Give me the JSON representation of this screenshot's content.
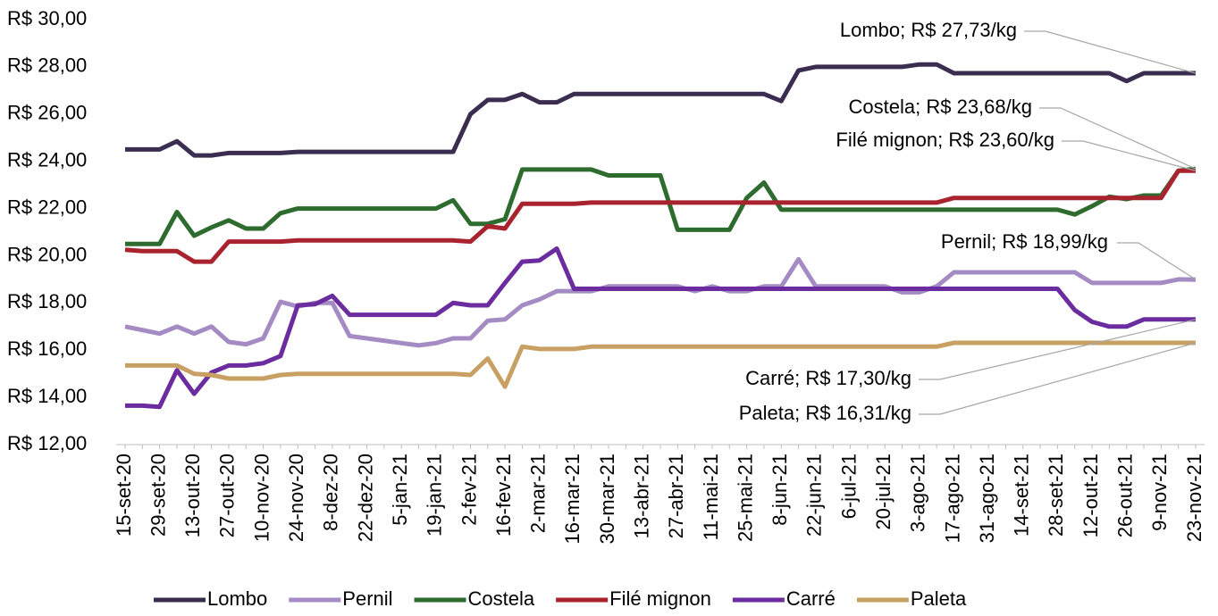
{
  "chart_data": {
    "type": "line",
    "categories": [
      "15-set-20",
      null,
      "29-set-20",
      null,
      "13-out-20",
      null,
      "27-out-20",
      null,
      "10-nov-20",
      null,
      "24-nov-20",
      null,
      "8-dez-20",
      null,
      "22-dez-20",
      null,
      "5-jan-21",
      null,
      "19-jan-21",
      null,
      "2-fev-21",
      null,
      "16-fev-21",
      null,
      "2-mar-21",
      null,
      "16-mar-21",
      null,
      "30-mar-21",
      null,
      "13-abr-21",
      null,
      "27-abr-21",
      null,
      "11-mai-21",
      null,
      "25-mai-21",
      null,
      "8-jun-21",
      null,
      "22-jun-21",
      null,
      "6-jul-21",
      null,
      "20-jul-21",
      null,
      "3-ago-21",
      null,
      "17-ago-21",
      null,
      "31-ago-21",
      null,
      "14-set-21",
      null,
      "28-set-21",
      null,
      "12-out-21",
      null,
      "26-out-21",
      null,
      "9-nov-21",
      null,
      "23-nov-21"
    ],
    "series": [
      {
        "name": "Lombo",
        "color": "#3b2d4f",
        "label": "Lombo; R$ 27,73/kg",
        "values": [
          24.5,
          24.5,
          24.5,
          24.85,
          24.25,
          24.25,
          24.35,
          24.35,
          24.35,
          24.35,
          24.4,
          24.4,
          24.4,
          24.4,
          24.4,
          24.4,
          24.4,
          24.4,
          24.4,
          24.4,
          26.0,
          26.6,
          26.6,
          26.85,
          26.5,
          26.5,
          26.85,
          26.85,
          26.85,
          26.85,
          26.85,
          26.85,
          26.85,
          26.85,
          26.85,
          26.85,
          26.85,
          26.85,
          26.55,
          27.85,
          28.0,
          28.0,
          28.0,
          28.0,
          28.0,
          28.0,
          28.1,
          28.1,
          27.73,
          27.73,
          27.73,
          27.73,
          27.73,
          27.73,
          27.73,
          27.73,
          27.73,
          27.73,
          27.4,
          27.73,
          27.73,
          27.73,
          27.73
        ]
      },
      {
        "name": "Pernil",
        "color": "#a48bc4",
        "label": "Pernil; R$ 18,99/kg",
        "values": [
          17.0,
          16.85,
          16.7,
          17.0,
          16.7,
          17.0,
          16.35,
          16.25,
          16.5,
          18.05,
          17.85,
          18.0,
          18.0,
          16.6,
          16.5,
          16.4,
          16.3,
          16.2,
          16.3,
          16.5,
          16.5,
          17.25,
          17.3,
          17.9,
          18.15,
          18.5,
          18.5,
          18.5,
          18.7,
          18.7,
          18.7,
          18.7,
          18.7,
          18.5,
          18.7,
          18.5,
          18.5,
          18.7,
          18.7,
          19.85,
          18.7,
          18.7,
          18.7,
          18.7,
          18.7,
          18.45,
          18.45,
          18.7,
          19.3,
          19.3,
          19.3,
          19.3,
          19.3,
          19.3,
          19.3,
          19.3,
          18.85,
          18.85,
          18.85,
          18.85,
          18.85,
          19.0,
          18.99
        ]
      },
      {
        "name": "Costela",
        "color": "#2e6b2e",
        "label": "Costela; R$ 23,68/kg",
        "values": [
          20.5,
          20.5,
          20.5,
          21.85,
          20.85,
          21.2,
          21.5,
          21.15,
          21.15,
          21.8,
          22.0,
          22.0,
          22.0,
          22.0,
          22.0,
          22.0,
          22.0,
          22.0,
          22.0,
          22.35,
          21.35,
          21.35,
          21.55,
          23.65,
          23.65,
          23.65,
          23.65,
          23.65,
          23.4,
          23.4,
          23.4,
          23.4,
          21.1,
          21.1,
          21.1,
          21.1,
          22.45,
          23.1,
          21.95,
          21.95,
          21.95,
          21.95,
          21.95,
          21.95,
          21.95,
          21.95,
          21.95,
          21.95,
          21.95,
          21.95,
          21.95,
          21.95,
          21.95,
          21.95,
          21.95,
          21.75,
          22.1,
          22.5,
          22.4,
          22.55,
          22.55,
          23.6,
          23.68
        ]
      },
      {
        "name": "Filé mignon",
        "color": "#a8232e",
        "label": "Filé mignon; R$ 23,60/kg",
        "values": [
          20.25,
          20.2,
          20.2,
          20.2,
          19.75,
          19.75,
          20.6,
          20.6,
          20.6,
          20.6,
          20.65,
          20.65,
          20.65,
          20.65,
          20.65,
          20.65,
          20.65,
          20.65,
          20.65,
          20.65,
          20.6,
          21.25,
          21.15,
          22.2,
          22.2,
          22.2,
          22.2,
          22.25,
          22.25,
          22.25,
          22.25,
          22.25,
          22.25,
          22.25,
          22.25,
          22.25,
          22.25,
          22.25,
          22.25,
          22.25,
          22.25,
          22.25,
          22.25,
          22.25,
          22.25,
          22.25,
          22.25,
          22.25,
          22.45,
          22.45,
          22.45,
          22.45,
          22.45,
          22.45,
          22.45,
          22.45,
          22.45,
          22.45,
          22.45,
          22.45,
          22.45,
          23.6,
          23.6
        ]
      },
      {
        "name": "Carré",
        "color": "#6a2c9e",
        "label": "Carré; R$ 17,30/kg",
        "values": [
          13.65,
          13.65,
          13.6,
          15.15,
          14.15,
          15.05,
          15.35,
          15.35,
          15.45,
          15.75,
          17.9,
          17.95,
          18.3,
          17.5,
          17.5,
          17.5,
          17.5,
          17.5,
          17.5,
          18.0,
          17.9,
          17.9,
          18.85,
          19.75,
          19.8,
          20.3,
          18.6,
          18.6,
          18.6,
          18.6,
          18.6,
          18.6,
          18.6,
          18.6,
          18.6,
          18.6,
          18.6,
          18.6,
          18.6,
          18.6,
          18.6,
          18.6,
          18.6,
          18.6,
          18.6,
          18.6,
          18.6,
          18.6,
          18.6,
          18.6,
          18.6,
          18.6,
          18.6,
          18.6,
          18.6,
          17.7,
          17.2,
          17.0,
          17.0,
          17.3,
          17.3,
          17.3,
          17.3
        ]
      },
      {
        "name": "Paleta",
        "color": "#c9a063",
        "label": "Paleta; R$ 16,31/kg",
        "values": [
          15.35,
          15.35,
          15.35,
          15.35,
          15.0,
          14.95,
          14.8,
          14.8,
          14.8,
          14.95,
          15.0,
          15.0,
          15.0,
          15.0,
          15.0,
          15.0,
          15.0,
          15.0,
          15.0,
          15.0,
          14.95,
          15.65,
          14.45,
          16.15,
          16.05,
          16.05,
          16.05,
          16.15,
          16.15,
          16.15,
          16.15,
          16.15,
          16.15,
          16.15,
          16.15,
          16.15,
          16.15,
          16.15,
          16.15,
          16.15,
          16.15,
          16.15,
          16.15,
          16.15,
          16.15,
          16.15,
          16.15,
          16.15,
          16.31,
          16.31,
          16.31,
          16.31,
          16.31,
          16.31,
          16.31,
          16.31,
          16.31,
          16.31,
          16.31,
          16.31,
          16.31,
          16.31,
          16.31
        ]
      }
    ],
    "ylim": [
      12,
      30
    ],
    "yticks": [
      {
        "value": 12,
        "label": "R$ 12,00"
      },
      {
        "value": 14,
        "label": "R$ 14,00"
      },
      {
        "value": 16,
        "label": "R$ 16,00"
      },
      {
        "value": 18,
        "label": "R$ 18,00"
      },
      {
        "value": 20,
        "label": "R$ 20,00"
      },
      {
        "value": 22,
        "label": "R$ 22,00"
      },
      {
        "value": 24,
        "label": "R$ 24,00"
      },
      {
        "value": 26,
        "label": "R$ 26,00"
      },
      {
        "value": 28,
        "label": "R$ 28,00"
      },
      {
        "value": 30,
        "label": "R$ 30,00"
      }
    ],
    "grid": false,
    "legend": "bottom"
  }
}
